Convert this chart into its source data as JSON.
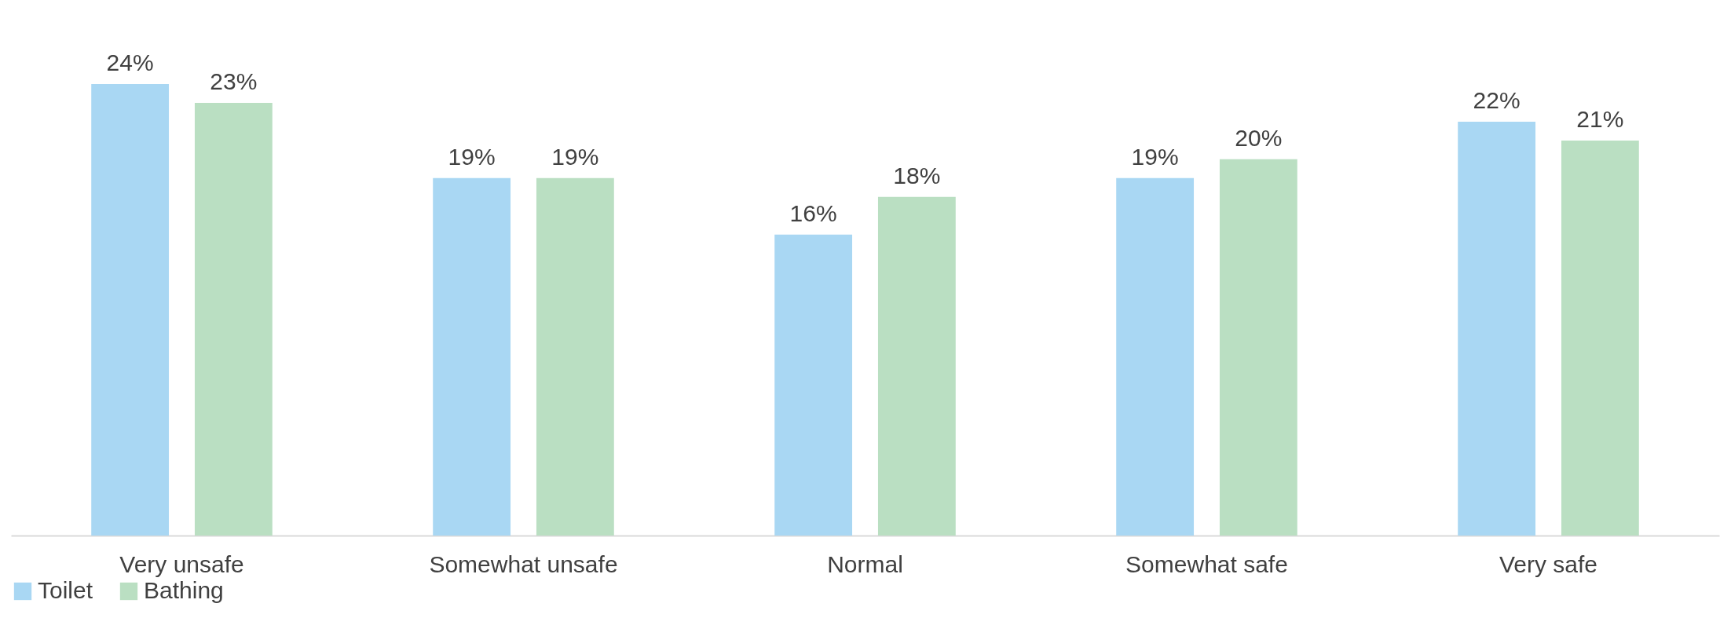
{
  "chart_data": {
    "type": "bar",
    "categories": [
      "Very unsafe",
      "Somewhat unsafe",
      "Normal",
      "Somewhat safe",
      "Very safe"
    ],
    "series": [
      {
        "name": "Toilet",
        "color": "#a9d7f3",
        "values": [
          24,
          19,
          16,
          19,
          22
        ],
        "value_labels": [
          "24%",
          "19%",
          "16%",
          "19%",
          "22%"
        ]
      },
      {
        "name": "Bathing",
        "color": "#badfc2",
        "values": [
          23,
          19,
          18,
          20,
          21
        ],
        "value_labels": [
          "23%",
          "19%",
          "18%",
          "20%",
          "21%"
        ]
      }
    ],
    "legend": "bottom",
    "grid": false
  }
}
